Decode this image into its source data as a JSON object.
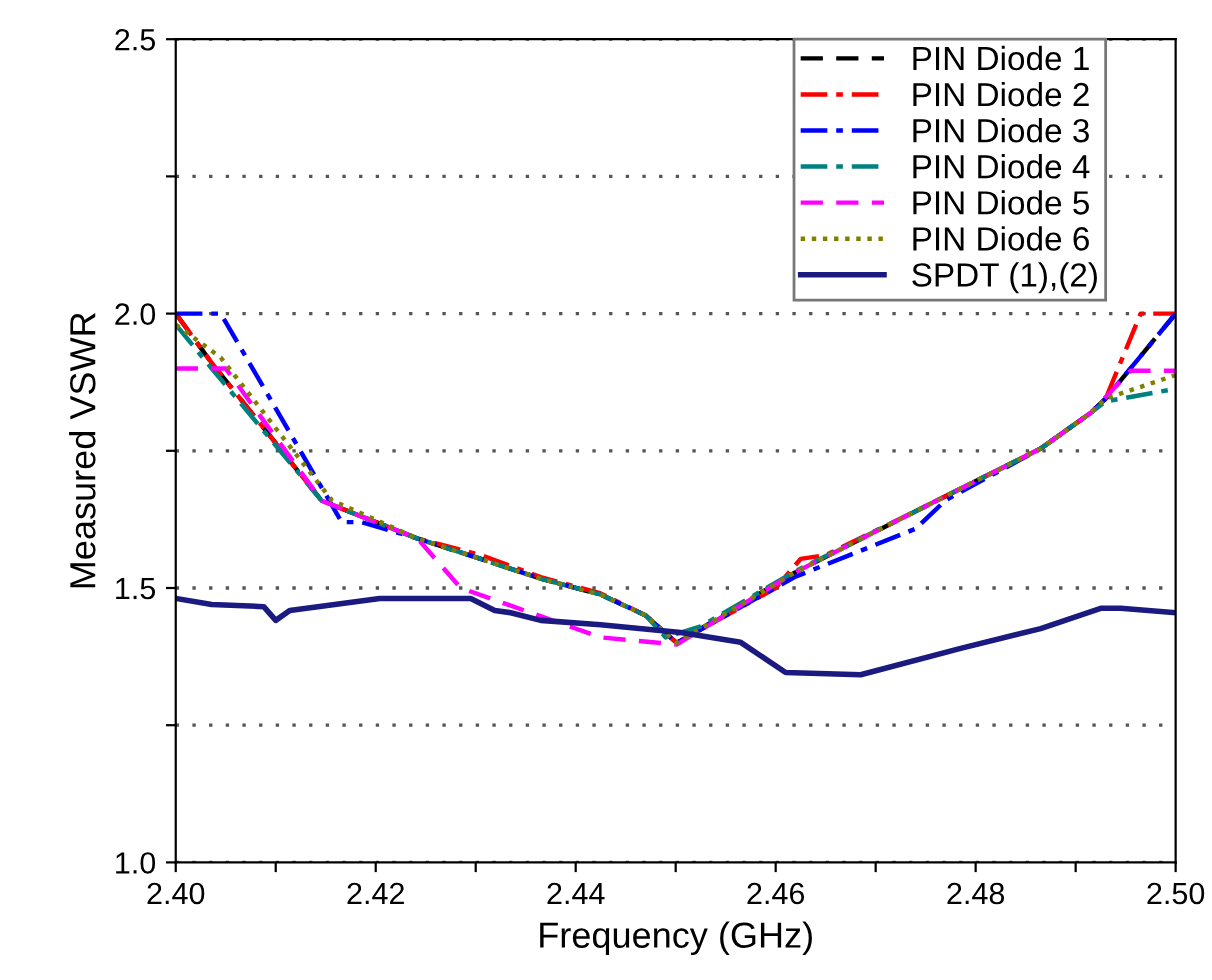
{
  "chart_data": {
    "type": "line",
    "xlabel": "Frequency (GHz)",
    "ylabel": "Measured VSWR",
    "xlim": [
      2.4,
      2.5
    ],
    "ylim": [
      1.0,
      2.5
    ],
    "xticks": [
      {
        "value": 2.4,
        "label": "2.40"
      },
      {
        "value": 2.41,
        "label": null
      },
      {
        "value": 2.42,
        "label": "2.42"
      },
      {
        "value": 2.43,
        "label": null
      },
      {
        "value": 2.44,
        "label": "2.44"
      },
      {
        "value": 2.45,
        "label": null
      },
      {
        "value": 2.46,
        "label": "2.46"
      },
      {
        "value": 2.47,
        "label": null
      },
      {
        "value": 2.48,
        "label": "2.48"
      },
      {
        "value": 2.49,
        "label": null
      },
      {
        "value": 2.5,
        "label": "2.50"
      }
    ],
    "yticks": [
      {
        "value": 1.0,
        "label": "1.0"
      },
      {
        "value": 1.25,
        "label": null
      },
      {
        "value": 1.5,
        "label": "1.5"
      },
      {
        "value": 1.75,
        "label": null
      },
      {
        "value": 2.0,
        "label": "2.0"
      },
      {
        "value": 2.25,
        "label": null
      },
      {
        "value": 2.5,
        "label": "2.5"
      }
    ],
    "grid": "y",
    "legend": "top right",
    "series": [
      {
        "name": "PIN Diode 1",
        "color": "#000000",
        "line_style": "dashed",
        "x": [
          2.4,
          2.4036,
          2.4146,
          2.4242,
          2.4305,
          2.4365,
          2.4425,
          2.447,
          2.4501,
          2.4619,
          2.474,
          2.4865,
          2.4915,
          2.493,
          2.5
        ],
        "values": [
          2.0,
          1.91,
          1.659,
          1.59,
          1.553,
          1.517,
          1.488,
          1.45,
          1.4,
          1.528,
          1.64,
          1.754,
          1.819,
          1.845,
          2.0
        ]
      },
      {
        "name": "PIN Diode 2",
        "color": "#ff0000",
        "line_style": "dashdot",
        "x": [
          2.4,
          2.4036,
          2.4146,
          2.4242,
          2.4305,
          2.4365,
          2.4425,
          2.447,
          2.4501,
          2.46,
          2.4625,
          2.465,
          2.474,
          2.4865,
          2.4915,
          2.493,
          2.4965,
          2.5
        ],
        "values": [
          2.0,
          1.91,
          1.659,
          1.59,
          1.56,
          1.52,
          1.49,
          1.45,
          1.4,
          1.5,
          1.553,
          1.56,
          1.64,
          1.754,
          1.819,
          1.845,
          2.0,
          2.0
        ]
      },
      {
        "name": "PIN Diode 3",
        "color": "#0000ff",
        "line_style": "dashdot",
        "x": [
          2.4,
          2.4045,
          2.4166,
          2.4186,
          2.4242,
          2.4305,
          2.4365,
          2.4425,
          2.447,
          2.4501,
          2.4619,
          2.474,
          2.477,
          2.4865,
          2.4915,
          2.493,
          2.5
        ],
        "values": [
          2.0,
          2.0,
          1.62,
          1.62,
          1.59,
          1.553,
          1.517,
          1.488,
          1.45,
          1.4,
          1.52,
          1.608,
          1.66,
          1.754,
          1.819,
          1.845,
          2.0
        ]
      },
      {
        "name": "PIN Diode 4",
        "color": "#008080",
        "line_style": "dashdot",
        "x": [
          2.4,
          2.4036,
          2.4146,
          2.4242,
          2.4305,
          2.4365,
          2.4425,
          2.447,
          2.449,
          2.4525,
          2.4619,
          2.474,
          2.4865,
          2.4915,
          2.493,
          2.5
        ],
        "values": [
          1.98,
          1.9,
          1.659,
          1.59,
          1.553,
          1.517,
          1.488,
          1.45,
          1.41,
          1.43,
          1.53,
          1.64,
          1.754,
          1.819,
          1.84,
          1.863
        ]
      },
      {
        "name": "PIN Diode 5",
        "color": "#ff00ff",
        "line_style": "dashed",
        "x": [
          2.4,
          2.405,
          2.4146,
          2.4242,
          2.4285,
          2.4425,
          2.4501,
          2.4619,
          2.474,
          2.4865,
          2.4915,
          2.4955,
          2.5
        ],
        "values": [
          1.9,
          1.9,
          1.659,
          1.59,
          1.5,
          1.41,
          1.397,
          1.528,
          1.64,
          1.754,
          1.819,
          1.896,
          1.896
        ]
      },
      {
        "name": "PIN Diode 6",
        "color": "#808000",
        "line_style": "dotted",
        "x": [
          2.4,
          2.4045,
          2.4156,
          2.4242,
          2.4305,
          2.4365,
          2.4425,
          2.447,
          2.4501,
          2.4619,
          2.474,
          2.4865,
          2.4915,
          2.493,
          2.5
        ],
        "values": [
          1.98,
          1.92,
          1.66,
          1.59,
          1.553,
          1.517,
          1.488,
          1.45,
          1.4,
          1.528,
          1.64,
          1.754,
          1.819,
          1.845,
          1.888
        ]
      },
      {
        "name": "SPDT (1),(2)",
        "color": "#1a1a80",
        "line_style": "solid",
        "x": [
          2.4,
          2.4036,
          2.4088,
          2.41,
          2.4114,
          2.4204,
          2.4295,
          2.4319,
          2.4335,
          2.4365,
          2.4425,
          2.4505,
          2.4565,
          2.461,
          2.4685,
          2.4785,
          2.4865,
          2.4925,
          2.4945,
          2.5
        ],
        "values": [
          1.481,
          1.47,
          1.466,
          1.441,
          1.459,
          1.481,
          1.481,
          1.459,
          1.455,
          1.441,
          1.433,
          1.419,
          1.401,
          1.346,
          1.342,
          1.39,
          1.426,
          1.463,
          1.463,
          1.455
        ]
      }
    ]
  }
}
